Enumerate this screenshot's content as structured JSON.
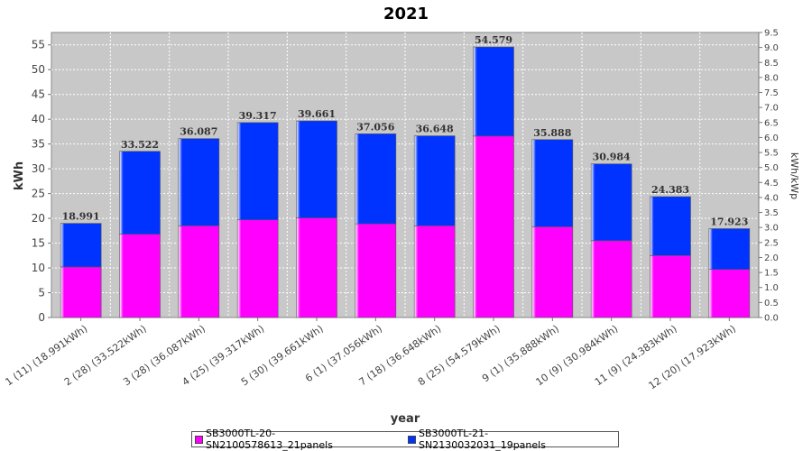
{
  "chart_data": {
    "type": "bar",
    "stacked": true,
    "title": "2021",
    "xlabel": "year",
    "ylabel": "kWh",
    "y2label": "kWh/kWp",
    "ylim": [
      0,
      57.5
    ],
    "y2lim": [
      0,
      9.5
    ],
    "yticks": [
      "0",
      "5",
      "10",
      "15",
      "20",
      "25",
      "30",
      "35",
      "40",
      "45",
      "50",
      "55"
    ],
    "y2ticks": [
      "0.0",
      "0.5",
      "1.0",
      "1.5",
      "2.0",
      "2.5",
      "3.0",
      "3.5",
      "4.0",
      "4.5",
      "5.0",
      "5.5",
      "6.0",
      "6.5",
      "7.0",
      "7.5",
      "8.0",
      "8.5",
      "9.0",
      "9.5"
    ],
    "grid": true,
    "legend_position": "bottom",
    "categories": [
      "1 (11)  (18.991kWh)",
      "2 (28)  (33.522kWh)",
      "3 (28)  (36.087kWh)",
      "4 (25)  (39.317kWh)",
      "5 (30)  (39.661kWh)",
      "6 (1)  (37.056kWh)",
      "7 (18)  (36.648kWh)",
      "8 (25)  (54.579kWh)",
      "9 (1)  (35.888kWh)",
      "10 (9)  (30.984kWh)",
      "11 (9)  (24.383kWh)",
      "12 (20)  (17.923kWh)"
    ],
    "series": [
      {
        "name": "SB3000TL-20-SN2100578613_21panels",
        "color": "#ff00ff",
        "values": [
          10.2,
          16.8,
          18.5,
          19.7,
          20.1,
          18.9,
          18.5,
          36.6,
          18.3,
          15.5,
          12.5,
          9.7
        ]
      },
      {
        "name": "SB3000TL-21-SN2130032031_19panels",
        "color": "#0033ff",
        "values": [
          8.791,
          16.722,
          17.587,
          19.617,
          19.561,
          18.156,
          18.148,
          17.979,
          17.588,
          15.484,
          11.883,
          8.223
        ]
      }
    ],
    "totals": [
      "18.991",
      "33.522",
      "36.087",
      "39.317",
      "39.661",
      "37.056",
      "36.648",
      "54.579",
      "35.888",
      "30.984",
      "24.383",
      "17.923"
    ]
  }
}
